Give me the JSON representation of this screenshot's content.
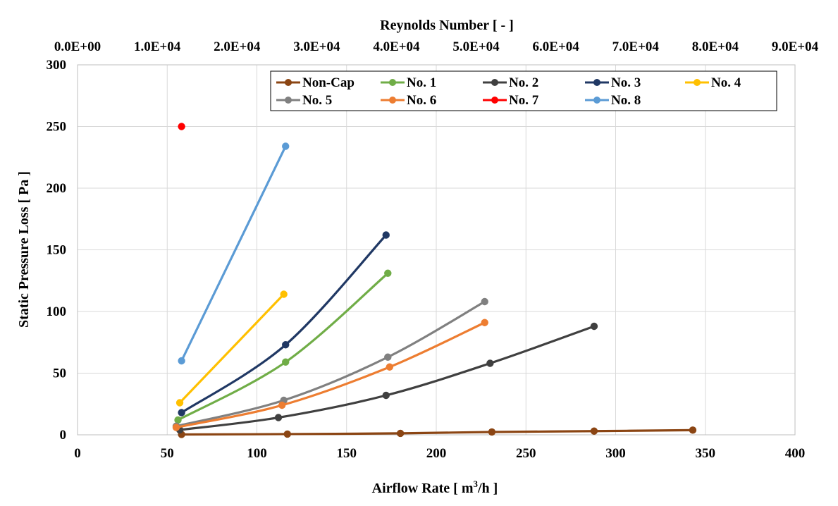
{
  "chart_data": {
    "type": "line",
    "title": "",
    "xlabel": "Airflow Rate [ m",
    "xlabel_sup": "3",
    "xlabel_tail": "/h ]",
    "ylabel": "Static Pressure Loss [ Pa ]",
    "x2label": "Reynolds Number [ - ]",
    "xlim": [
      0,
      400
    ],
    "ylim": [
      0,
      300
    ],
    "x2lim": [
      0,
      90000
    ],
    "x_ticks": [
      "0",
      "50",
      "100",
      "150",
      "200",
      "250",
      "300",
      "350",
      "400"
    ],
    "y_ticks": [
      "0",
      "50",
      "100",
      "150",
      "200",
      "250",
      "300"
    ],
    "x2_ticks": [
      "0.0E+00",
      "1.0E+04",
      "2.0E+04",
      "3.0E+04",
      "4.0E+04",
      "5.0E+04",
      "6.0E+04",
      "7.0E+04",
      "8.0E+04",
      "9.0E+04"
    ],
    "grid": true,
    "legend_position": "top-right",
    "series": [
      {
        "name": "Non-Cap",
        "color": "#8B4513",
        "x": [
          58,
          117,
          180,
          231,
          288,
          343
        ],
        "y": [
          0.3,
          0.6,
          1.2,
          2.3,
          3.0,
          3.8
        ]
      },
      {
        "name": "No. 1",
        "color": "#70AD47",
        "x": [
          56,
          116,
          173
        ],
        "y": [
          12,
          59,
          131
        ]
      },
      {
        "name": "No. 2",
        "color": "#404040",
        "x": [
          57,
          112,
          172,
          230,
          288
        ],
        "y": [
          4,
          14,
          32,
          58,
          88
        ]
      },
      {
        "name": "No. 3",
        "color": "#203864",
        "x": [
          58,
          116,
          172
        ],
        "y": [
          18,
          73,
          162
        ]
      },
      {
        "name": "No. 4",
        "color": "#FFC000",
        "x": [
          57,
          115
        ],
        "y": [
          26,
          114
        ]
      },
      {
        "name": "No. 5",
        "color": "#808080",
        "x": [
          55,
          115,
          173,
          227
        ],
        "y": [
          7,
          28,
          63,
          108
        ]
      },
      {
        "name": "No. 6",
        "color": "#ED7D31",
        "x": [
          55,
          114,
          174,
          227
        ],
        "y": [
          6,
          24,
          55,
          91
        ]
      },
      {
        "name": "No. 7",
        "color": "#FF0000",
        "x": [
          58
        ],
        "y": [
          250
        ]
      },
      {
        "name": "No. 8",
        "color": "#5B9BD5",
        "x": [
          58,
          116
        ],
        "y": [
          60,
          234
        ]
      }
    ]
  }
}
